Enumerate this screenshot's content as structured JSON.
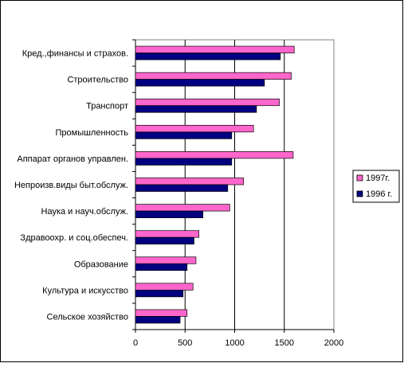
{
  "chart_data": {
    "type": "bar",
    "orientation": "horizontal",
    "categories": [
      "Кред.,финансы и страхов.",
      "Строительство",
      "Транспорт",
      "Промышленность",
      "Аппарат органов управлен.",
      "Непроизв.виды быт.обслуж.",
      "Наука и науч.обслуж.",
      "Здравоохр. и соц.обеспеч.",
      "Образование",
      "Культура и искусство",
      "Сельское хозяйство"
    ],
    "series": [
      {
        "name": "1997г.",
        "color": "#ff66cc",
        "values": [
          1600,
          1570,
          1450,
          1190,
          1590,
          1090,
          950,
          640,
          610,
          580,
          520
        ]
      },
      {
        "name": "1996 г.",
        "color": "#000080",
        "values": [
          1460,
          1300,
          1220,
          970,
          970,
          930,
          680,
          590,
          520,
          480,
          450
        ]
      }
    ],
    "xlim": [
      0,
      2000
    ],
    "xticks": [
      "0",
      "500",
      "1000",
      "1500",
      "2000"
    ],
    "grid": "vertical",
    "legend_position": "right",
    "title": "",
    "xlabel": "",
    "ylabel": ""
  }
}
